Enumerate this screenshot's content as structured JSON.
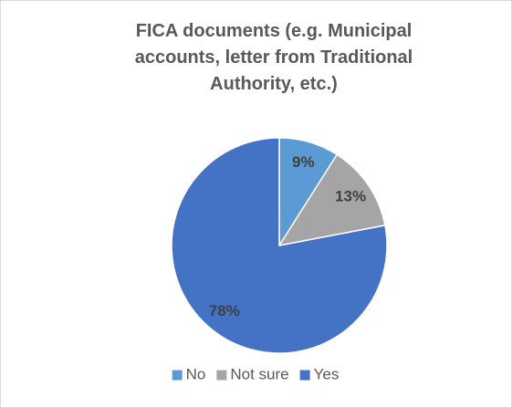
{
  "chart_data": {
    "type": "pie",
    "title": "FICA documents (e.g. Municipal accounts, letter from Traditional Authority, etc.)",
    "categories": [
      "No",
      "Not sure",
      "Yes"
    ],
    "values": [
      9,
      13,
      78
    ],
    "value_labels": [
      "9%",
      "13%",
      "78%"
    ],
    "colors": [
      "#5b9bd5",
      "#a5a5a5",
      "#4472c4"
    ],
    "legend": "bottom"
  }
}
